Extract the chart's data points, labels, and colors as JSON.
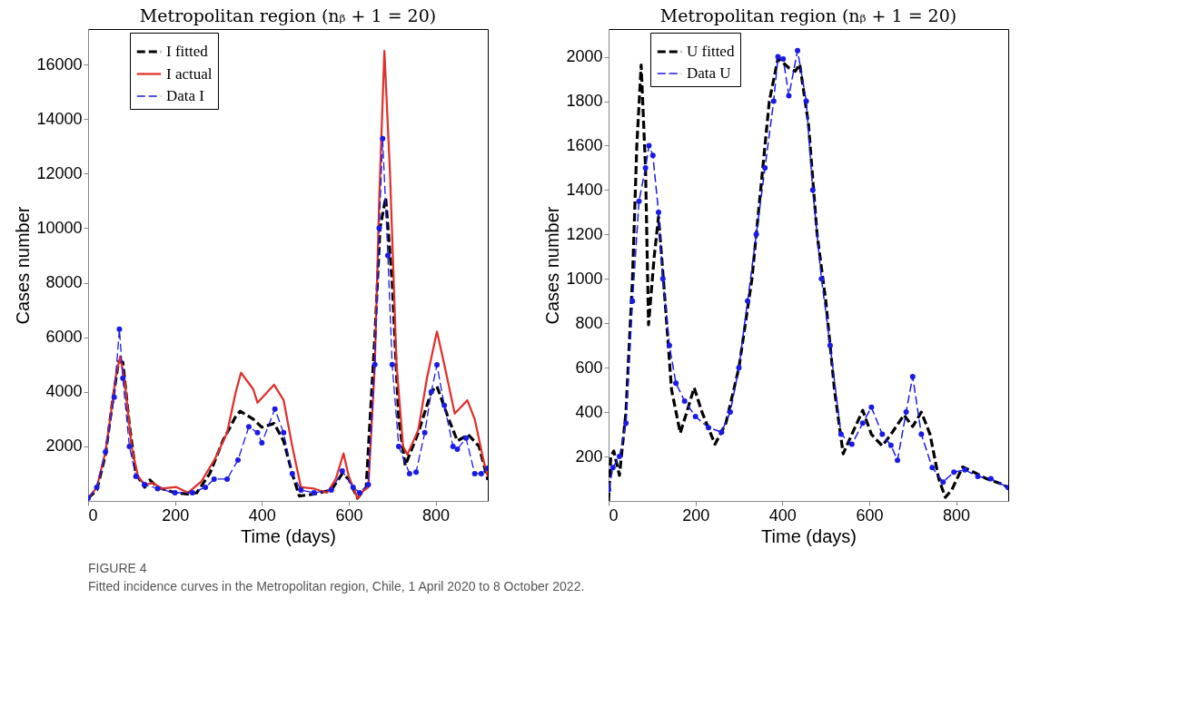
{
  "chart_data": [
    {
      "type": "line",
      "title": "Metropolitan region (nᵦ + 1 = 20)",
      "xlabel": "Time (days)",
      "ylabel": "Cases number",
      "xlim": [
        0,
        920
      ],
      "xticks": [
        0,
        200,
        400,
        600,
        800
      ],
      "ylim": [
        0,
        17300
      ],
      "yticks": [
        2000,
        4000,
        6000,
        8000,
        10000,
        12000,
        14000,
        16000
      ],
      "grid": false,
      "legend": "top left",
      "annotations": [
        "FIGURE 4",
        "Fitted incidence curves in the Metropolitan region, Chile, 1 April 2020 to 8 October 2022."
      ],
      "series": [
        {
          "name": "I fitted",
          "color": "#000000",
          "line_style": "dashed",
          "x": [
            0,
            20,
            40,
            55,
            70,
            80,
            95,
            110,
            130,
            142,
            160,
            200,
            230,
            250,
            280,
            310,
            340,
            350,
            380,
            400,
            428,
            450,
            470,
            486,
            520,
            560,
            585,
            600,
            620,
            640,
            660,
            672,
            685,
            700,
            715,
            730,
            760,
            790,
            803,
            830,
            850,
            875,
            900,
            920
          ],
          "values": [
            100,
            400,
            1700,
            3500,
            5100,
            5090,
            2800,
            1000,
            500,
            770,
            500,
            300,
            250,
            300,
            1000,
            2200,
            3100,
            3290,
            3000,
            2700,
            2840,
            2200,
            1000,
            180,
            250,
            400,
            1000,
            800,
            100,
            500,
            6000,
            10000,
            11120,
            8000,
            3000,
            1300,
            2500,
            4000,
            4200,
            3000,
            2200,
            2430,
            2000,
            770
          ]
        },
        {
          "name": "I actual",
          "color": "#e0302c",
          "line_style": "solid",
          "x": [
            0,
            20,
            40,
            55,
            65,
            74,
            85,
            100,
            115,
            130,
            150,
            170,
            203,
            230,
            260,
            292,
            320,
            340,
            352,
            380,
            390,
            428,
            450,
            470,
            490,
            520,
            550,
            570,
            588,
            600,
            620,
            635,
            645,
            660,
            670,
            682,
            695,
            710,
            725,
            735,
            760,
            780,
            803,
            820,
            844,
            873,
            890,
            910,
            920
          ],
          "values": [
            100,
            500,
            1800,
            3500,
            4700,
            5300,
            4300,
            2000,
            900,
            600,
            650,
            450,
            510,
            300,
            700,
            1540,
            2500,
            4000,
            4700,
            4100,
            3600,
            4260,
            3700,
            2000,
            500,
            450,
            300,
            800,
            1740,
            900,
            100,
            400,
            500,
            5000,
            11000,
            16500,
            12000,
            5000,
            2000,
            1700,
            2600,
            4500,
            6210,
            5000,
            3200,
            3690,
            3000,
            1500,
            900
          ]
        },
        {
          "name": "Data I",
          "color": "#1a1ae6",
          "line_style": "dashed",
          "marker": "circle",
          "x": [
            0,
            20,
            40,
            60,
            72,
            80,
            95,
            110,
            130,
            160,
            200,
            240,
            270,
            290,
            320,
            345,
            370,
            390,
            400,
            430,
            450,
            470,
            490,
            520,
            560,
            585,
            610,
            625,
            645,
            660,
            670,
            678,
            690,
            700,
            715,
            740,
            755,
            775,
            790,
            803,
            820,
            840,
            850,
            870,
            890,
            905,
            920
          ],
          "values": [
            100,
            500,
            1800,
            3800,
            6300,
            4500,
            2000,
            900,
            600,
            450,
            300,
            300,
            500,
            800,
            800,
            1500,
            2720,
            2500,
            2130,
            3370,
            2500,
            1000,
            400,
            300,
            400,
            1100,
            500,
            300,
            600,
            5000,
            10000,
            13280,
            9000,
            5000,
            2000,
            1000,
            1060,
            2500,
            4000,
            4990,
            3500,
            2000,
            1900,
            2300,
            1000,
            1000,
            1200
          ]
        }
      ]
    },
    {
      "type": "line",
      "title": "Metropolitan region (nᵦ + 1 = 20)",
      "xlabel": "Time (days)",
      "ylabel": "Cases number",
      "xlim": [
        0,
        920
      ],
      "xticks": [
        0,
        200,
        400,
        600,
        800
      ],
      "ylim": [
        0,
        2125
      ],
      "yticks": [
        200,
        400,
        600,
        800,
        1000,
        1200,
        1400,
        1600,
        1800,
        2000
      ],
      "grid": false,
      "legend": "top left",
      "series": [
        {
          "name": "U fitted",
          "color": "#000000",
          "line_style": "dashed",
          "x": [
            0,
            5,
            12,
            25,
            40,
            55,
            65,
            75,
            85,
            92,
            105,
            115,
            130,
            145,
            165,
            180,
            197,
            215,
            245,
            270,
            300,
            330,
            350,
            370,
            390,
            415,
            430,
            440,
            460,
            480,
            500,
            520,
            540,
            560,
            585,
            605,
            630,
            650,
            680,
            700,
            720,
            740,
            760,
            775,
            790,
            815,
            840,
            870,
            900,
            920
          ],
          "values": [
            0,
            200,
            225,
            115,
            400,
            1000,
            1600,
            1963,
            1500,
            793,
            1100,
            1280,
            900,
            500,
            306,
            400,
            510,
            400,
            255,
            350,
            600,
            1000,
            1400,
            1800,
            1993,
            1950,
            1935,
            1967,
            1700,
            1200,
            900,
            500,
            212,
            300,
            408,
            300,
            248,
            300,
            387,
            335,
            400,
            300,
            100,
            16,
            50,
            153,
            130,
            100,
            80,
            60
          ]
        },
        {
          "name": "Data U",
          "color": "#1a1ae6",
          "line_style": "dashed",
          "marker": "circle",
          "x": [
            0,
            10,
            25,
            40,
            55,
            70,
            85,
            93,
            102,
            115,
            125,
            140,
            155,
            175,
            200,
            230,
            260,
            280,
            300,
            320,
            340,
            360,
            380,
            390,
            402,
            415,
            435,
            455,
            470,
            490,
            510,
            535,
            560,
            585,
            605,
            630,
            650,
            665,
            685,
            700,
            720,
            745,
            770,
            795,
            820,
            850,
            880,
            920
          ],
          "values": [
            50,
            150,
            200,
            350,
            900,
            1350,
            1500,
            1600,
            1556,
            1300,
            1000,
            700,
            530,
            450,
            380,
            330,
            310,
            400,
            600,
            900,
            1200,
            1500,
            1800,
            2000,
            1990,
            1825,
            2028,
            1800,
            1400,
            1000,
            700,
            300,
            255,
            350,
            422,
            300,
            250,
            183,
            400,
            560,
            300,
            150,
            85,
            130,
            140,
            110,
            100,
            60
          ]
        }
      ]
    }
  ]
}
